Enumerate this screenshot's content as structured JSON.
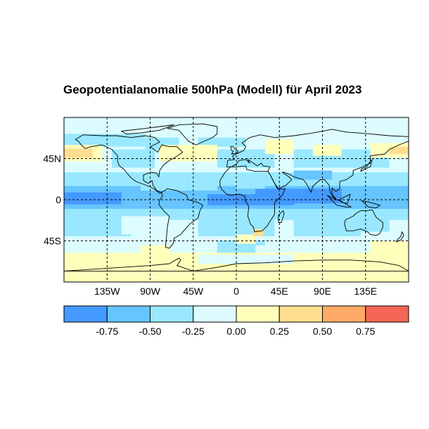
{
  "title": "Geopotentialanomalie 500hPa (Modell) für April 2023",
  "map": {
    "projection": "equirectangular",
    "lon_range": [
      -180,
      180
    ],
    "lat_range": [
      -90,
      90
    ],
    "grid": "dashed",
    "lat_ticks": [
      {
        "value": 45,
        "label": "45N"
      },
      {
        "value": 0,
        "label": "0"
      },
      {
        "value": -45,
        "label": "45S"
      }
    ],
    "lon_ticks": [
      {
        "value": -135,
        "label": "135W"
      },
      {
        "value": -90,
        "label": "90W"
      },
      {
        "value": -45,
        "label": "45W"
      },
      {
        "value": 0,
        "label": "0"
      },
      {
        "value": 45,
        "label": "45E"
      },
      {
        "value": 90,
        "label": "90E"
      },
      {
        "value": 135,
        "label": "135E"
      }
    ]
  },
  "colorbar": {
    "colors": [
      "#4499ff",
      "#66c4ff",
      "#99e8ff",
      "#ddfcff",
      "#ffffbb",
      "#ffdd90",
      "#ffaa66",
      "#f46655"
    ],
    "labels": [
      "-0.75",
      "-0.50",
      "-0.25",
      "0.00",
      "0.25",
      "0.50",
      "0.75"
    ]
  }
}
